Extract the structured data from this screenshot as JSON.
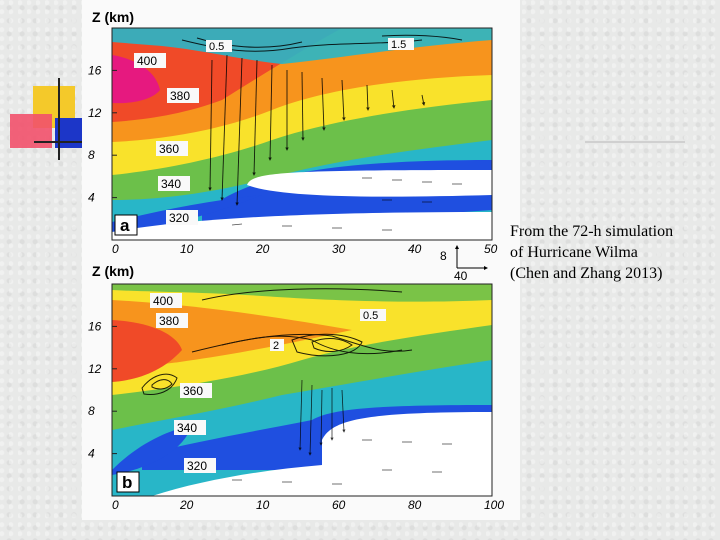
{
  "caption": {
    "line1": "From the 72-h simulation",
    "line2": "of Hurricane Wilma",
    "line3": "(Chen and Zhang 2013)"
  },
  "chart_data": [
    {
      "type": "heatmap",
      "panel_label": "a",
      "ylabel": "Z (km)",
      "x_ticks": [
        0,
        10,
        20,
        30,
        40,
        50
      ],
      "y_ticks": [
        4,
        8,
        12,
        16
      ],
      "xlim": [
        0,
        50
      ],
      "ylim": [
        0,
        20
      ],
      "theta_labels": [
        "400",
        "380",
        "360",
        "340",
        "320"
      ],
      "contour_labels": [
        "0.5",
        "1.5"
      ],
      "reference_vector": {
        "vertical": "8",
        "horizontal": "40"
      }
    },
    {
      "type": "heatmap",
      "panel_label": "b",
      "ylabel": "Z (km)",
      "x_ticks": [
        "0",
        "20",
        "10",
        "60",
        "80",
        "100"
      ],
      "y_ticks": [
        4,
        8,
        12,
        16
      ],
      "xlim": [
        0,
        100
      ],
      "ylim": [
        0,
        20
      ],
      "theta_labels": [
        "400",
        "380",
        "360",
        "340",
        "320"
      ],
      "contour_labels": [
        "0.5",
        "2"
      ]
    }
  ],
  "colors": {
    "magenta": "#e6197f",
    "red": "#f04a28",
    "orange": "#f7941d",
    "yellow": "#f9e22b",
    "green": "#6cc04a",
    "cyan": "#28b6c8",
    "blue": "#1f4fe0",
    "white": "#ffffff"
  }
}
